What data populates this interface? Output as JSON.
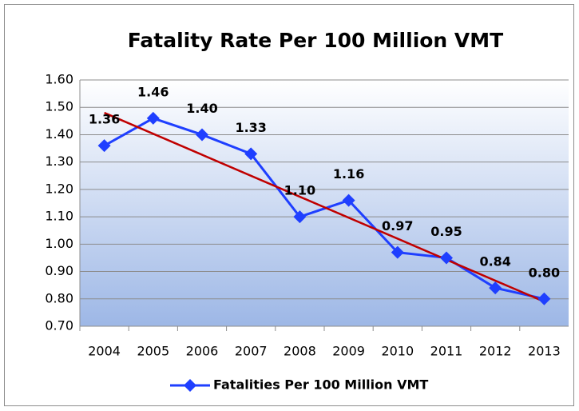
{
  "chart_data": {
    "type": "line",
    "title": "Fatality Rate Per 100 Million VMT",
    "categories": [
      "2004",
      "2005",
      "2006",
      "2007",
      "2008",
      "2009",
      "2010",
      "2011",
      "2012",
      "2013"
    ],
    "series": [
      {
        "name": "Fatalities Per 100 Million VMT",
        "color": "#1f3fff",
        "values": [
          1.36,
          1.46,
          1.4,
          1.33,
          1.1,
          1.16,
          0.97,
          0.95,
          0.84,
          0.8
        ],
        "value_labels": [
          "1.36",
          "1.46",
          "1.40",
          "1.33",
          "1.10",
          "1.16",
          "0.97",
          "0.95",
          "0.84",
          "0.80"
        ]
      }
    ],
    "trendline": {
      "color": "#c00000",
      "values": [
        1.48,
        0.79
      ]
    },
    "ylim": [
      0.7,
      1.6
    ],
    "yticks": [
      {
        "value": 0.7,
        "label": "0.70"
      },
      {
        "value": 0.8,
        "label": "0.80"
      },
      {
        "value": 0.9,
        "label": "0.90"
      },
      {
        "value": 1.0,
        "label": "1.00"
      },
      {
        "value": 1.1,
        "label": "1.10"
      },
      {
        "value": 1.2,
        "label": "1.20"
      },
      {
        "value": 1.3,
        "label": "1.30"
      },
      {
        "value": 1.4,
        "label": "1.40"
      },
      {
        "value": 1.5,
        "label": "1.50"
      },
      {
        "value": 1.6,
        "label": "1.60"
      }
    ],
    "grid": true,
    "legend": "bottom"
  }
}
